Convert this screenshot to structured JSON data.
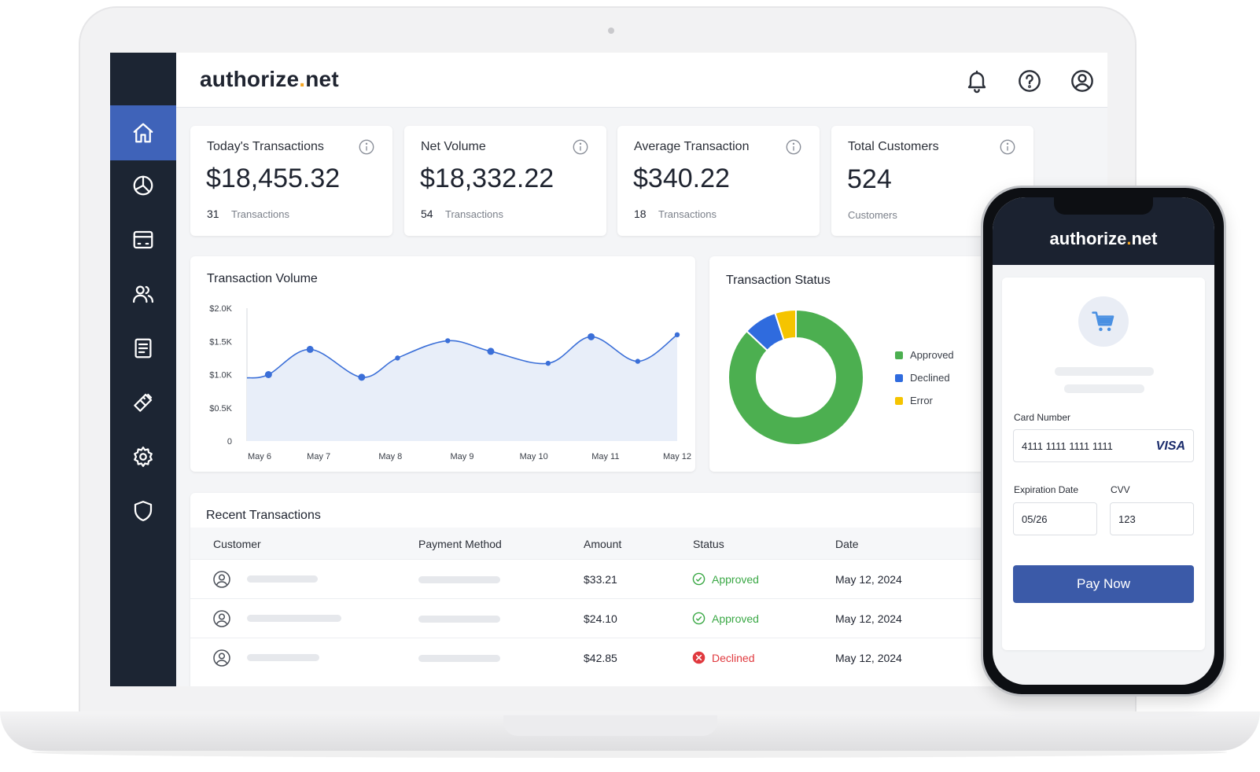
{
  "brand": {
    "name_main": "authorize",
    "name_dot": ".",
    "name_tld": "net",
    "accent": "#f5a623"
  },
  "sidebar": {
    "items": [
      {
        "icon": "home-icon",
        "active": true
      },
      {
        "icon": "pie-chart-icon"
      },
      {
        "icon": "wallet-icon"
      },
      {
        "icon": "users-icon"
      },
      {
        "icon": "document-icon"
      },
      {
        "icon": "tools-icon"
      },
      {
        "icon": "gear-icon"
      },
      {
        "icon": "shield-icon"
      }
    ]
  },
  "header_icons": [
    "bell-icon",
    "help-icon",
    "account-icon"
  ],
  "stats": [
    {
      "title": "Today's Transactions",
      "value": "$18,455.32",
      "count": "31",
      "unit": "Transactions"
    },
    {
      "title": "Net Volume",
      "value": "$18,332.22",
      "count": "54",
      "unit": "Transactions"
    },
    {
      "title": "Average Transaction",
      "value": "$340.22",
      "count": "18",
      "unit": "Transactions"
    },
    {
      "title": "Total Customers",
      "value": "524",
      "count": "",
      "unit": "Customers"
    }
  ],
  "chart_data": [
    {
      "type": "area",
      "title": "Transaction Volume",
      "x": [
        "May 6",
        "May 7",
        "May 8",
        "May 9",
        "May 10",
        "May 11",
        "May 12"
      ],
      "yticks": [
        "0",
        "$0.5K",
        "$1.0K",
        "$1.5K",
        "$2.0K"
      ],
      "ylim": [
        0,
        2000
      ],
      "points": [
        {
          "x": 0.0,
          "y": 950
        },
        {
          "x": 0.3,
          "y": 1000
        },
        {
          "x": 0.88,
          "y": 1380
        },
        {
          "x": 1.6,
          "y": 960
        },
        {
          "x": 2.1,
          "y": 1250
        },
        {
          "x": 2.8,
          "y": 1510
        },
        {
          "x": 3.4,
          "y": 1350
        },
        {
          "x": 4.2,
          "y": 1170
        },
        {
          "x": 4.8,
          "y": 1570
        },
        {
          "x": 5.45,
          "y": 1200
        },
        {
          "x": 6.0,
          "y": 1600
        }
      ],
      "markers": [
        1,
        2,
        3,
        4,
        5,
        6,
        7,
        8,
        9,
        10
      ],
      "color": "#3b6fd8",
      "fill": "#e8eef9"
    },
    {
      "type": "pie",
      "title": "Transaction Status",
      "slices": [
        {
          "label": "Approved",
          "value": 87,
          "color": "#4caf50"
        },
        {
          "label": "Declined",
          "value": 8,
          "color": "#2f6bde"
        },
        {
          "label": "Error",
          "value": 5,
          "color": "#f5c400"
        }
      ],
      "legend": "right"
    }
  ],
  "recent": {
    "title": "Recent Transactions",
    "columns": [
      "Customer",
      "Payment Method",
      "Amount",
      "Status",
      "Date"
    ],
    "rows": [
      {
        "amount": "$33.21",
        "status": "Approved",
        "date": "May 12, 2024"
      },
      {
        "amount": "$24.10",
        "status": "Approved",
        "date": "May 12, 2024"
      },
      {
        "amount": "$42.85",
        "status": "Declined",
        "date": "May 12, 2024"
      }
    ],
    "status_colors": {
      "Approved": "#3aa845",
      "Declined": "#e0393e"
    }
  },
  "phone": {
    "card_number_label": "Card Number",
    "card_number": "4111 1111 1111 1111",
    "card_brand": "VISA",
    "exp_label": "Expiration Date",
    "exp_value": "05/26",
    "cvv_label": "CVV",
    "cvv_value": "123",
    "pay_label": "Pay Now"
  }
}
